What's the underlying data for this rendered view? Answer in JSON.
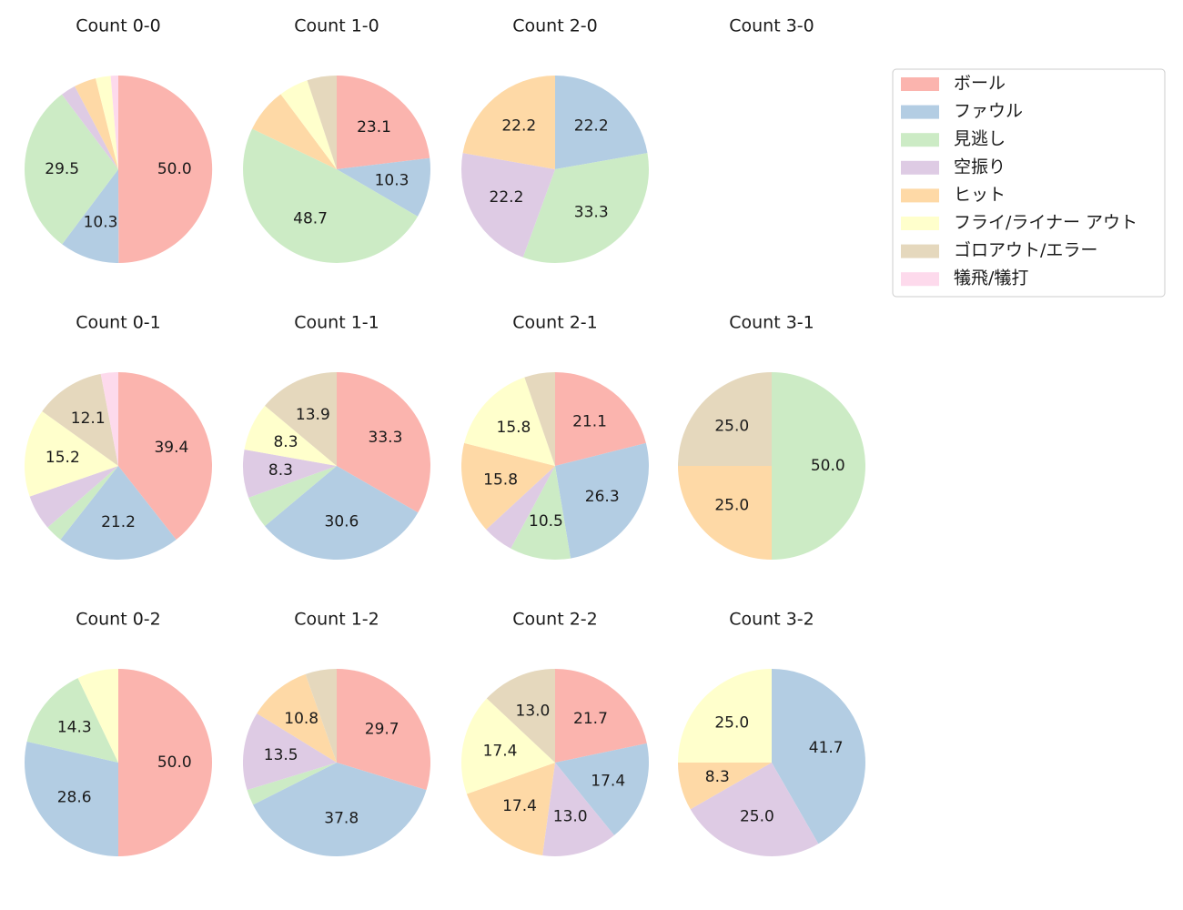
{
  "chart_data": {
    "type": "pie",
    "categories": [
      "ボール",
      "ファウル",
      "見逃し",
      "空振り",
      "ヒット",
      "フライ/ライナー アウト",
      "ゴロアウト/エラー",
      "犠飛/犠打"
    ],
    "colors": [
      "#fbb4ae",
      "#b3cde3",
      "#ccebc5",
      "#decbe4",
      "#fed9a6",
      "#ffffcc",
      "#e5d8bd",
      "#fddaec"
    ],
    "label_threshold": 8,
    "charts": [
      {
        "title": "Count 0-0",
        "values": [
          50.0,
          10.3,
          29.5,
          2.6,
          3.8,
          2.6,
          0,
          1.3
        ]
      },
      {
        "title": "Count 1-0",
        "values": [
          23.1,
          10.3,
          48.7,
          0,
          7.7,
          5.1,
          5.1,
          0
        ]
      },
      {
        "title": "Count 2-0",
        "values": [
          0,
          22.2,
          33.3,
          22.2,
          22.2,
          0,
          0,
          0
        ]
      },
      {
        "title": "Count 3-0",
        "values": []
      },
      {
        "title": "Count 0-1",
        "values": [
          39.4,
          21.2,
          3.0,
          6.1,
          0,
          15.2,
          12.1,
          3.0
        ]
      },
      {
        "title": "Count 1-1",
        "values": [
          33.3,
          30.6,
          5.6,
          8.3,
          0,
          8.3,
          13.9,
          0
        ]
      },
      {
        "title": "Count 2-1",
        "values": [
          21.1,
          26.3,
          10.5,
          5.3,
          15.8,
          15.8,
          5.3,
          0
        ]
      },
      {
        "title": "Count 3-1",
        "values": [
          0,
          0,
          50.0,
          0,
          25.0,
          0,
          25.0,
          0
        ]
      },
      {
        "title": "Count 0-2",
        "values": [
          50.0,
          28.6,
          14.3,
          0,
          0,
          7.1,
          0,
          0
        ]
      },
      {
        "title": "Count 1-2",
        "values": [
          29.7,
          37.8,
          2.7,
          13.5,
          10.8,
          0,
          5.4,
          0
        ]
      },
      {
        "title": "Count 2-2",
        "values": [
          21.7,
          17.4,
          0,
          13.0,
          17.4,
          17.4,
          13.0,
          0
        ]
      },
      {
        "title": "Count 3-2",
        "values": [
          0,
          41.7,
          0,
          25.0,
          8.3,
          25.0,
          0,
          0
        ]
      }
    ]
  }
}
